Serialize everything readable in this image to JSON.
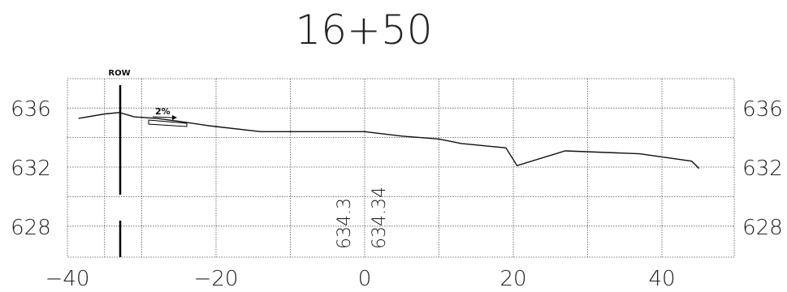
{
  "title": "16+50",
  "row_label": "ROW",
  "slope_label": "2%",
  "x_ticks": [
    {
      "value": -40,
      "label": "−40"
    },
    {
      "value": -20,
      "label": "−20"
    },
    {
      "value": 0,
      "label": "0"
    },
    {
      "value": 20,
      "label": "20"
    },
    {
      "value": 40,
      "label": "40"
    }
  ],
  "y_ticks": [
    {
      "value": 636,
      "label": "636"
    },
    {
      "value": 632,
      "label": "632"
    },
    {
      "value": 628,
      "label": "628"
    }
  ],
  "elevation_labels": [
    {
      "station": -1,
      "text": "634.3"
    },
    {
      "station": 2,
      "text": "634.34"
    }
  ],
  "chart_data": {
    "type": "line",
    "title": "16+50",
    "xlim": [
      -40,
      45
    ],
    "ylim": [
      626,
      638
    ],
    "grid": true,
    "row_station": -33,
    "series": [
      {
        "x": [
          -38.5,
          -35,
          -33,
          -31,
          -28,
          -25,
          -21,
          -14,
          -5,
          0,
          5,
          10,
          13,
          19,
          20.5,
          27,
          37,
          44,
          45
        ],
        "y": [
          635.3,
          635.6,
          635.7,
          635.4,
          635.3,
          635.1,
          634.8,
          634.4,
          634.4,
          634.4,
          634.1,
          633.9,
          633.6,
          633.3,
          632.1,
          633.1,
          632.9,
          632.4,
          631.9
        ]
      }
    ],
    "annotations": [
      {
        "x": -1,
        "text": "634.3"
      },
      {
        "x": 2,
        "text": "634.34"
      }
    ]
  }
}
